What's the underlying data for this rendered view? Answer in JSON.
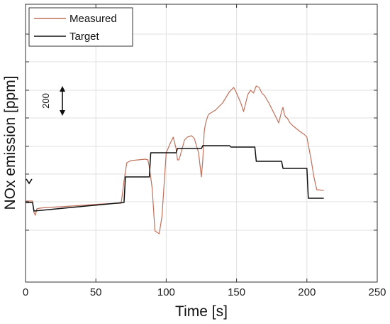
{
  "chart_data": {
    "type": "line",
    "xlabel": "Time [s]",
    "ylabel": "NOx emission [ppm]",
    "xlim": [
      0,
      250
    ],
    "xticks": [
      0,
      50,
      100,
      150,
      200,
      250
    ],
    "x_tick_labels": [
      "0",
      "50",
      "100",
      "150",
      "200",
      "250"
    ],
    "grid": true,
    "legend_position": "top-left",
    "annotation": {
      "label": "200",
      "span": 200
    },
    "series": [
      {
        "name": "Measured",
        "color": "#c0705a",
        "x": [
          0,
          2,
          5,
          6,
          7,
          8,
          10,
          15,
          25,
          40,
          55,
          68,
          70,
          72,
          75,
          80,
          85,
          87,
          88,
          90,
          92,
          95,
          97,
          100,
          103,
          105,
          107,
          108,
          109,
          110,
          113,
          115,
          118,
          120,
          123,
          125,
          126,
          127,
          128,
          130,
          135,
          140,
          145,
          148,
          150,
          153,
          155,
          158,
          160,
          162,
          164,
          166,
          168,
          170,
          173,
          175,
          178,
          180,
          182,
          183,
          184,
          185,
          186,
          188,
          190,
          195,
          198,
          200,
          203,
          205,
          207,
          212
        ],
        "y": [
          10,
          10,
          10,
          -70,
          -90,
          -45,
          -40,
          -35,
          -30,
          -20,
          -10,
          -5,
          150,
          280,
          295,
          300,
          305,
          300,
          250,
          100,
          -200,
          -220,
          -100,
          350,
          420,
          460,
          380,
          300,
          300,
          330,
          440,
          460,
          470,
          450,
          350,
          180,
          300,
          500,
          560,
          620,
          650,
          700,
          780,
          810,
          770,
          700,
          640,
          760,
          790,
          770,
          820,
          810,
          770,
          750,
          700,
          660,
          600,
          560,
          640,
          670,
          620,
          600,
          595,
          560,
          540,
          500,
          480,
          460,
          300,
          180,
          90,
          85
        ]
      },
      {
        "name": "Target",
        "color": "#111111",
        "x": [
          0,
          5,
          6,
          70,
          71,
          88,
          89,
          107,
          108,
          125,
          126,
          145,
          146,
          163,
          164,
          182,
          183,
          200,
          201,
          212
        ],
        "y": [
          0,
          0,
          -60,
          0,
          180,
          180,
          350,
          350,
          380,
          380,
          400,
          400,
          390,
          390,
          290,
          290,
          240,
          240,
          30,
          30
        ]
      }
    ]
  }
}
